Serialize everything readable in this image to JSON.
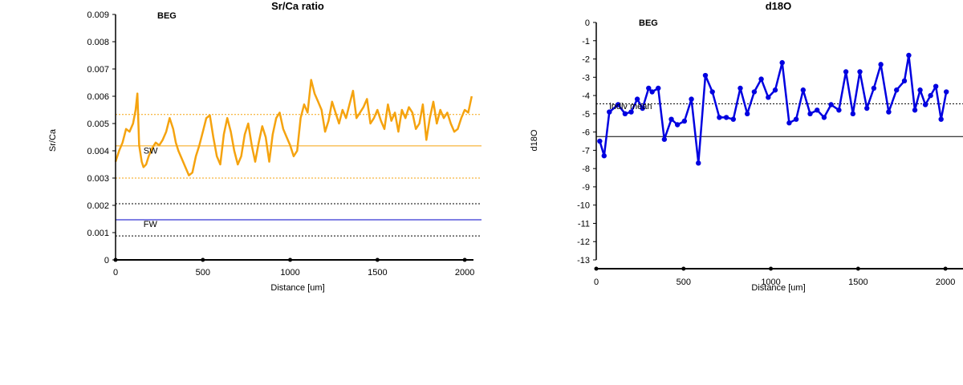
{
  "chart_data": [
    {
      "type": "line",
      "title": "Sr/Ca ratio",
      "site_label": "BEG",
      "xlabel": "Distance [um]",
      "ylabel": "Sr/Ca",
      "xlim": [
        0,
        2050
      ],
      "ylim": [
        0,
        0.009
      ],
      "x_ticks": [
        0,
        500,
        1000,
        1500,
        2000
      ],
      "x_tick_labels": [
        "0",
        "500",
        "1000",
        "1500",
        "2000"
      ],
      "y_ticks": [
        0,
        0.001,
        0.002,
        0.003,
        0.004,
        0.005,
        0.006,
        0.007,
        0.008,
        0.009
      ],
      "y_tick_labels": [
        "0",
        "0.001",
        "0.002",
        "0.003",
        "0.004",
        "0.005",
        "0.006",
        "0.007",
        "0.008",
        "0.009"
      ],
      "grid": false,
      "series": [
        {
          "color": "#f5a30f",
          "x": [
            0,
            20,
            40,
            60,
            80,
            100,
            115,
            125,
            135,
            150,
            160,
            175,
            190,
            210,
            230,
            250,
            270,
            290,
            310,
            330,
            345,
            360,
            380,
            400,
            420,
            440,
            460,
            480,
            500,
            520,
            540,
            560,
            580,
            600,
            620,
            640,
            660,
            680,
            700,
            720,
            740,
            760,
            780,
            800,
            820,
            840,
            860,
            880,
            900,
            920,
            940,
            960,
            980,
            1000,
            1020,
            1040,
            1060,
            1080,
            1100,
            1120,
            1140,
            1160,
            1180,
            1200,
            1220,
            1240,
            1260,
            1280,
            1300,
            1320,
            1340,
            1360,
            1380,
            1400,
            1420,
            1440,
            1460,
            1480,
            1500,
            1520,
            1540,
            1560,
            1580,
            1600,
            1620,
            1640,
            1660,
            1680,
            1700,
            1720,
            1740,
            1760,
            1780,
            1800,
            1820,
            1840,
            1860,
            1880,
            1900,
            1920,
            1940,
            1960,
            1980,
            2000,
            2020,
            2040
          ],
          "values": [
            0.0036,
            0.004,
            0.0043,
            0.0048,
            0.0047,
            0.005,
            0.0055,
            0.0061,
            0.0042,
            0.0036,
            0.0034,
            0.0035,
            0.0038,
            0.0041,
            0.0043,
            0.0042,
            0.0044,
            0.0047,
            0.0052,
            0.0048,
            0.0043,
            0.004,
            0.0037,
            0.0034,
            0.0031,
            0.0032,
            0.0038,
            0.0042,
            0.0047,
            0.0052,
            0.0053,
            0.0045,
            0.0038,
            0.0035,
            0.0046,
            0.0052,
            0.0047,
            0.004,
            0.0035,
            0.0038,
            0.0046,
            0.005,
            0.0042,
            0.0036,
            0.0043,
            0.0049,
            0.0045,
            0.0036,
            0.0046,
            0.0052,
            0.0054,
            0.0048,
            0.0045,
            0.0042,
            0.0038,
            0.004,
            0.0052,
            0.0057,
            0.0054,
            0.0066,
            0.0061,
            0.0058,
            0.0055,
            0.0047,
            0.0051,
            0.0058,
            0.0054,
            0.005,
            0.0055,
            0.0052,
            0.0057,
            0.0062,
            0.0052,
            0.0054,
            0.0056,
            0.0059,
            0.005,
            0.0052,
            0.0055,
            0.0051,
            0.0048,
            0.0057,
            0.0051,
            0.0054,
            0.0047,
            0.0055,
            0.0052,
            0.0056,
            0.0054,
            0.0048,
            0.005,
            0.0057,
            0.0044,
            0.0052,
            0.0058,
            0.005,
            0.0055,
            0.0052,
            0.0054,
            0.005,
            0.0047,
            0.0048,
            0.0052,
            0.0055,
            0.0054,
            0.006
          ]
        }
      ],
      "reference_lines": [
        {
          "y": 0.00533,
          "style": "dotted",
          "color": "#f5a30f"
        },
        {
          "y": 0.00418,
          "style": "solid",
          "color": "#f5a30f"
        },
        {
          "y": 0.003,
          "style": "dotted",
          "color": "#f5a30f"
        },
        {
          "y": 0.00206,
          "style": "dotted",
          "color": "#000000"
        },
        {
          "y": 0.00147,
          "style": "solid",
          "color": "#0000c8"
        },
        {
          "y": 0.00088,
          "style": "dotted",
          "color": "#000000"
        }
      ],
      "annotations": [
        {
          "text": "SW",
          "x": 160,
          "y": 0.0039
        },
        {
          "text": "FW",
          "x": 160,
          "y": 0.0012
        }
      ]
    },
    {
      "type": "line",
      "title": "d18O",
      "site_label": "BEG",
      "xlabel": "Distance [um]",
      "ylabel": "d18O",
      "xlim": [
        0,
        2050
      ],
      "ylim": [
        -13,
        0
      ],
      "x_ticks": [
        0,
        500,
        1000,
        1500,
        2000
      ],
      "x_tick_labels": [
        "0",
        "500",
        "1000",
        "1500",
        "2000"
      ],
      "y_ticks": [
        0,
        -1,
        -2,
        -3,
        -4,
        -5,
        -6,
        -7,
        -8,
        -9,
        -10,
        -11,
        -12,
        -13
      ],
      "y_tick_labels": [
        "0",
        "-1",
        "-2",
        "-3",
        "-4",
        "-5",
        "-6",
        "-7",
        "-8",
        "-9",
        "-10",
        "-11",
        "-12",
        "-13"
      ],
      "grid": false,
      "series": [
        {
          "color": "#0000e0",
          "x": [
            20,
            45,
            75,
            125,
            165,
            200,
            235,
            265,
            300,
            320,
            355,
            390,
            430,
            465,
            505,
            545,
            585,
            625,
            665,
            705,
            745,
            785,
            825,
            865,
            905,
            945,
            985,
            1025,
            1065,
            1105,
            1145,
            1185,
            1225,
            1265,
            1305,
            1345,
            1390,
            1430,
            1470,
            1510,
            1550,
            1590,
            1630,
            1675,
            1720,
            1765,
            1790,
            1825,
            1855,
            1885,
            1915,
            1945,
            1975,
            2005
          ],
          "values": [
            -6.5,
            -7.3,
            -4.9,
            -4.5,
            -5.0,
            -4.9,
            -4.2,
            -4.7,
            -3.6,
            -3.8,
            -3.6,
            -6.4,
            -5.3,
            -5.6,
            -5.4,
            -4.2,
            -7.7,
            -2.9,
            -3.8,
            -5.2,
            -5.2,
            -5.3,
            -3.6,
            -5.0,
            -3.8,
            -3.1,
            -4.1,
            -3.7,
            -2.2,
            -5.5,
            -5.3,
            -3.7,
            -5.0,
            -4.8,
            -5.2,
            -4.5,
            -4.8,
            -2.7,
            -5.0,
            -2.7,
            -4.7,
            -3.6,
            -2.3,
            -4.9,
            -3.7,
            -3.2,
            -1.8,
            -4.8,
            -3.7,
            -4.5,
            -4.0,
            -3.5,
            -5.3,
            -3.8
          ]
        }
      ],
      "reference_lines": [
        {
          "y": -4.45,
          "style": "dotted",
          "color": "#000000"
        },
        {
          "y": -6.25,
          "style": "solid",
          "color": "#000000"
        }
      ],
      "annotations": [
        {
          "text": "indiv mean",
          "x": 75,
          "y": -4.75
        }
      ]
    }
  ]
}
